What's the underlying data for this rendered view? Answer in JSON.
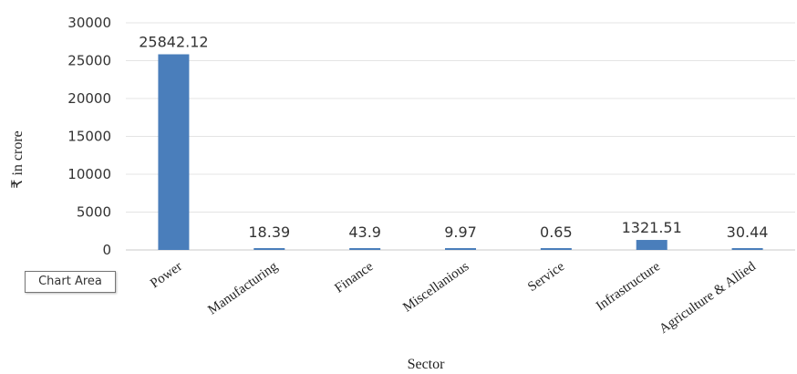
{
  "chart_data": {
    "type": "bar",
    "xlabel": "Sector",
    "ylabel": "₹ in crore",
    "ylim": [
      0,
      30000
    ],
    "yticks": [
      0,
      5000,
      10000,
      15000,
      20000,
      25000,
      30000
    ],
    "grid": true,
    "categories": [
      "Power",
      "Manufacturing",
      "Finance",
      "Miscellanious",
      "Service",
      "Infrastructure",
      "Agriculture & Allied"
    ],
    "values": [
      25842.12,
      18.39,
      43.9,
      9.97,
      0.65,
      1321.51,
      30.44
    ],
    "data_labels": [
      "25842.12",
      "18.39",
      "43.9",
      "9.97",
      "0.65",
      "1321.51",
      "30.44"
    ],
    "bar_color": "#4a7ebb"
  },
  "tooltip": {
    "text": "Chart Area"
  }
}
